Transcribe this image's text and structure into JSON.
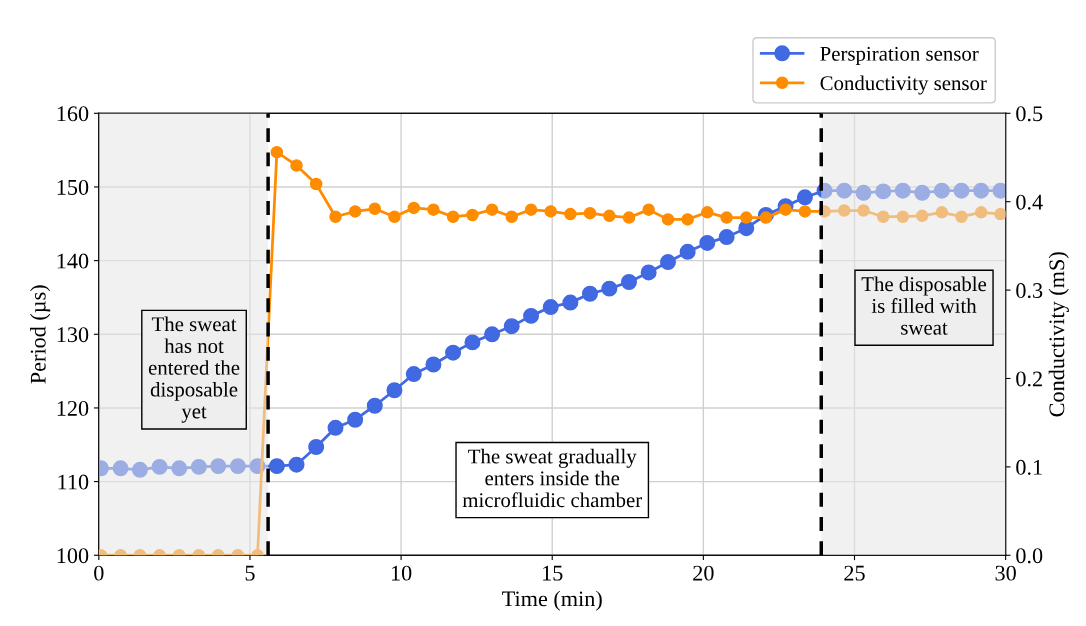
{
  "chart_data": {
    "type": "line",
    "xlabel": "Time (min)",
    "ylabel": "Period (µs)",
    "y2label": "Conductivity (mS)",
    "x": [
      0.07,
      0.72,
      1.36,
      2.01,
      2.66,
      3.31,
      3.95,
      4.6,
      5.25,
      5.89,
      6.54,
      7.19,
      7.83,
      8.48,
      9.13,
      9.78,
      10.42,
      11.07,
      11.72,
      12.36,
      13.01,
      13.66,
      14.3,
      14.95,
      15.6,
      16.25,
      16.89,
      17.54,
      18.19,
      18.83,
      19.48,
      20.13,
      20.77,
      21.42,
      22.07,
      22.72,
      23.36,
      24.01,
      24.66,
      25.3,
      25.95,
      26.6,
      27.24,
      27.89,
      28.54,
      29.19,
      29.83
    ],
    "series": [
      {
        "name": "Perspiration sensor",
        "color": "#4169e1",
        "values": [
          111.8,
          111.8,
          111.6,
          112.0,
          111.8,
          112.0,
          112.1,
          112.1,
          112.1,
          112.1,
          112.3,
          114.7,
          117.3,
          118.4,
          120.3,
          122.4,
          124.6,
          125.9,
          127.5,
          128.9,
          130.0,
          131.1,
          132.5,
          133.7,
          134.3,
          135.5,
          136.2,
          137.1,
          138.4,
          139.8,
          141.2,
          142.4,
          143.2,
          144.4,
          146.2,
          147.4,
          148.6,
          149.5,
          149.5,
          149.2,
          149.4,
          149.5,
          149.2,
          149.5,
          149.5,
          149.5,
          149.5
        ]
      },
      {
        "name": "Conductivity sensor",
        "color": "#ff8c00",
        "axis": "y2",
        "values": [
          0.0,
          0.0,
          0.0,
          0.0,
          0.0,
          0.0,
          0.0,
          0.0,
          0.0,
          0.456,
          0.441,
          0.42,
          0.383,
          0.389,
          0.392,
          0.383,
          0.393,
          0.391,
          0.383,
          0.385,
          0.391,
          0.383,
          0.391,
          0.389,
          0.386,
          0.387,
          0.384,
          0.382,
          0.391,
          0.38,
          0.38,
          0.388,
          0.382,
          0.382,
          0.382,
          0.391,
          0.389,
          0.389,
          0.39,
          0.39,
          0.383,
          0.383,
          0.384,
          0.388,
          0.383,
          0.388,
          0.386
        ]
      }
    ],
    "xlim": [
      0,
      30
    ],
    "xticks": [
      0,
      5,
      10,
      15,
      20,
      25,
      30
    ],
    "ylim": [
      100,
      160
    ],
    "yticks": [
      100,
      110,
      120,
      130,
      140,
      150,
      160
    ],
    "y2lim": [
      0,
      0.5
    ],
    "y2ticks": [
      {
        "value": 0,
        "label": "0.0"
      },
      0.1,
      0.2,
      0.3,
      0.4,
      0.5
    ],
    "ref_lines": [
      {
        "axis": "x",
        "value": 5.6,
        "color": "#000000",
        "line_style": "dashed"
      },
      {
        "axis": "x",
        "value": 23.9,
        "color": "#000000",
        "line_style": "dashed"
      }
    ],
    "bands": [
      {
        "axis": "x",
        "from": 0,
        "to": 5.6,
        "color": "#e6e6e6"
      },
      {
        "axis": "x",
        "from": 23.9,
        "to": 30,
        "color": "#e6e6e6"
      }
    ],
    "annotations": [
      "The sweat\nhas not\nentered the\ndisposable\nyet",
      "The sweat gradually\nenters inside the\nmicrofluidic chamber",
      "The disposable\nis filled with\nsweat"
    ],
    "grid": true,
    "legend": "top right",
    "marker": "circle",
    "line_style": "solid"
  }
}
